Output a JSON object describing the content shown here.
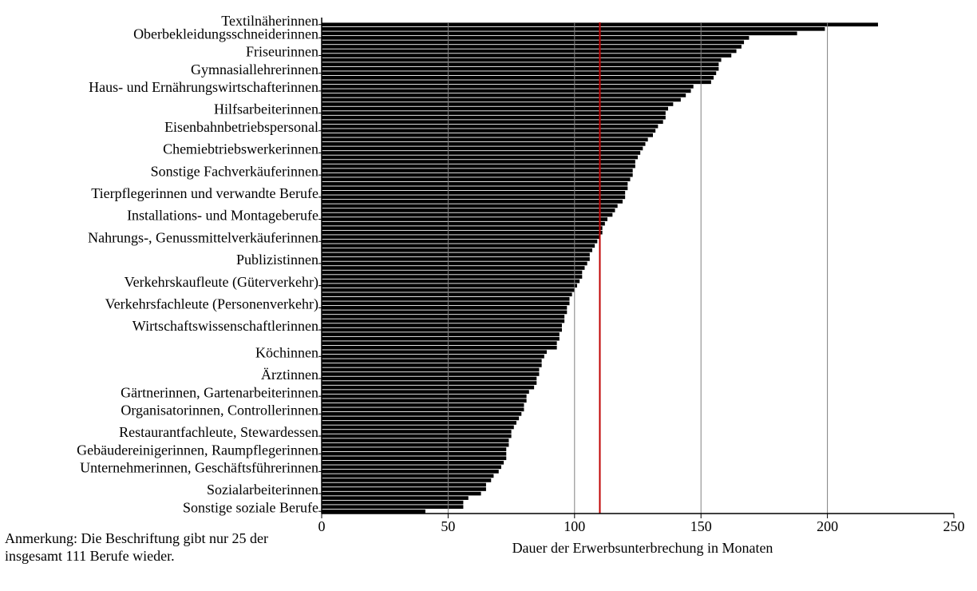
{
  "chart_data": {
    "type": "barh",
    "xlabel": "Dauer der Erwerbsunterbrechung in Monaten",
    "note_lines": [
      "Anmerkung: Die Beschriftung gibt nur 25 der",
      "insgesamt 111 Berufe wieder."
    ],
    "categories": [
      "Textilnäherinnen",
      null,
      null,
      "Oberbekleidungsschneiderinnen",
      null,
      null,
      null,
      "Friseurinnen",
      null,
      null,
      null,
      "Gymnasiallehrerinnen",
      null,
      null,
      null,
      "Haus- und Ernährungswirtschafterinnen",
      null,
      null,
      null,
      null,
      "Hilfsarbeiterinnen",
      null,
      null,
      null,
      "Eisenbahnbetriebspersonal",
      null,
      null,
      null,
      null,
      "Chemiebtriebswerkerinnen",
      null,
      null,
      null,
      null,
      "Sonstige Fachverkäuferinnen",
      null,
      null,
      null,
      null,
      "Tierpflegerinnen und verwandte Berufe",
      null,
      null,
      null,
      null,
      "Installations- und Montageberufe",
      null,
      null,
      null,
      null,
      "Nahrungs-, Genussmittelverkäuferinnen",
      null,
      null,
      null,
      null,
      "Publizistinnen",
      null,
      null,
      null,
      null,
      "Verkehrskaufleute (Güterverkehr)",
      null,
      null,
      null,
      null,
      "Verkehrsfachleute (Personenverkehr)",
      null,
      null,
      null,
      null,
      "Wirtschaftswissenschaftlerinnen",
      null,
      null,
      null,
      null,
      null,
      "Köchinnen",
      null,
      null,
      null,
      null,
      "Ärztinnen",
      null,
      null,
      null,
      "Gärtnerinnen, Gartenarbeiterinnen",
      null,
      null,
      null,
      "Organisatorinnen, Controllerinnen",
      null,
      null,
      null,
      null,
      "Restaurantfachleute, Stewardessen",
      null,
      null,
      null,
      "Gebäudereinigerinnen, Raumpflegerinnen",
      null,
      null,
      null,
      "Unternehmerinnen, Geschäftsführerinnen",
      null,
      null,
      null,
      null,
      "Sozialarbeiterinnen",
      null,
      null,
      null,
      "Sonstige soziale Berufe"
    ],
    "values": [
      220,
      199,
      188,
      169,
      167,
      166,
      164,
      162,
      158,
      157,
      157,
      156,
      155,
      154,
      147,
      146,
      144,
      142,
      139,
      137,
      136,
      136,
      135,
      133,
      132,
      131,
      129,
      128,
      127,
      126,
      125,
      124,
      124,
      123,
      123,
      122,
      121,
      121,
      120,
      120,
      119,
      117,
      116,
      115,
      113,
      112,
      111,
      111,
      110,
      109,
      108,
      107,
      106,
      106,
      105,
      104,
      103,
      103,
      102,
      101,
      100,
      99,
      98,
      98,
      97,
      97,
      96,
      96,
      95,
      95,
      94,
      94,
      93,
      93,
      89,
      88,
      87,
      87,
      86,
      86,
      85,
      85,
      84,
      82,
      81,
      81,
      80,
      80,
      79,
      78,
      77,
      76,
      75,
      75,
      74,
      74,
      73,
      73,
      73,
      72,
      71,
      70,
      68,
      67,
      65,
      65,
      63,
      58,
      56,
      56,
      41
    ],
    "color": "#000000",
    "xlim": [
      0,
      250
    ],
    "xticks": [
      0,
      50,
      100,
      150,
      200,
      250
    ],
    "grid_lines": [
      50,
      100,
      150,
      200
    ],
    "grid_color": "#808080",
    "reference_line": 110,
    "reference_color": "#c00000"
  }
}
